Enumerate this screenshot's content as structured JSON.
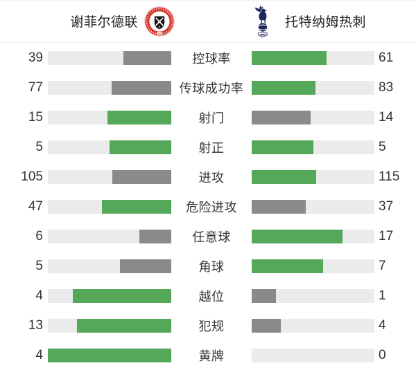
{
  "header": {
    "home_name": "谢菲尔德联",
    "away_name": "托特纳姆热刺",
    "home_logo_icon": "sheffield-united-crest",
    "away_logo_icon": "tottenham-hotspur-crest"
  },
  "colors": {
    "green": "#55a85a",
    "gray": "#8a8a8a",
    "track": "#ebebeb",
    "home_crest_red": "#d63a2f",
    "away_crest_navy": "#20265c",
    "text": "#333333"
  },
  "chart_data": {
    "type": "bar",
    "variant": "mirrored-horizontal-comparison",
    "title": "",
    "teams": [
      "谢菲尔德联",
      "托特纳姆热刺"
    ],
    "categories": [
      "控球率",
      "传球成功率",
      "射门",
      "射正",
      "进攻",
      "危险进攻",
      "任意球",
      "角球",
      "越位",
      "犯规",
      "黄牌"
    ],
    "category_keys": [
      "possession",
      "pass-success-rate",
      "shots",
      "shots-on-target",
      "attacks",
      "dangerous-attacks",
      "free-kicks",
      "corners",
      "offsides",
      "fouls",
      "yellow-cards"
    ],
    "series": [
      {
        "name": "谢菲尔德联",
        "side": "home",
        "values": [
          39,
          77,
          15,
          5,
          105,
          47,
          6,
          5,
          4,
          13,
          4
        ]
      },
      {
        "name": "托特纳姆热刺",
        "side": "away",
        "values": [
          61,
          83,
          14,
          5,
          115,
          37,
          17,
          7,
          1,
          4,
          0
        ]
      }
    ],
    "bar_rule": "fill width = value / (home + away); side with higher or equal value is green, lower is gray; empty track shown when value is 0",
    "legend_position": "none",
    "grid": false
  }
}
